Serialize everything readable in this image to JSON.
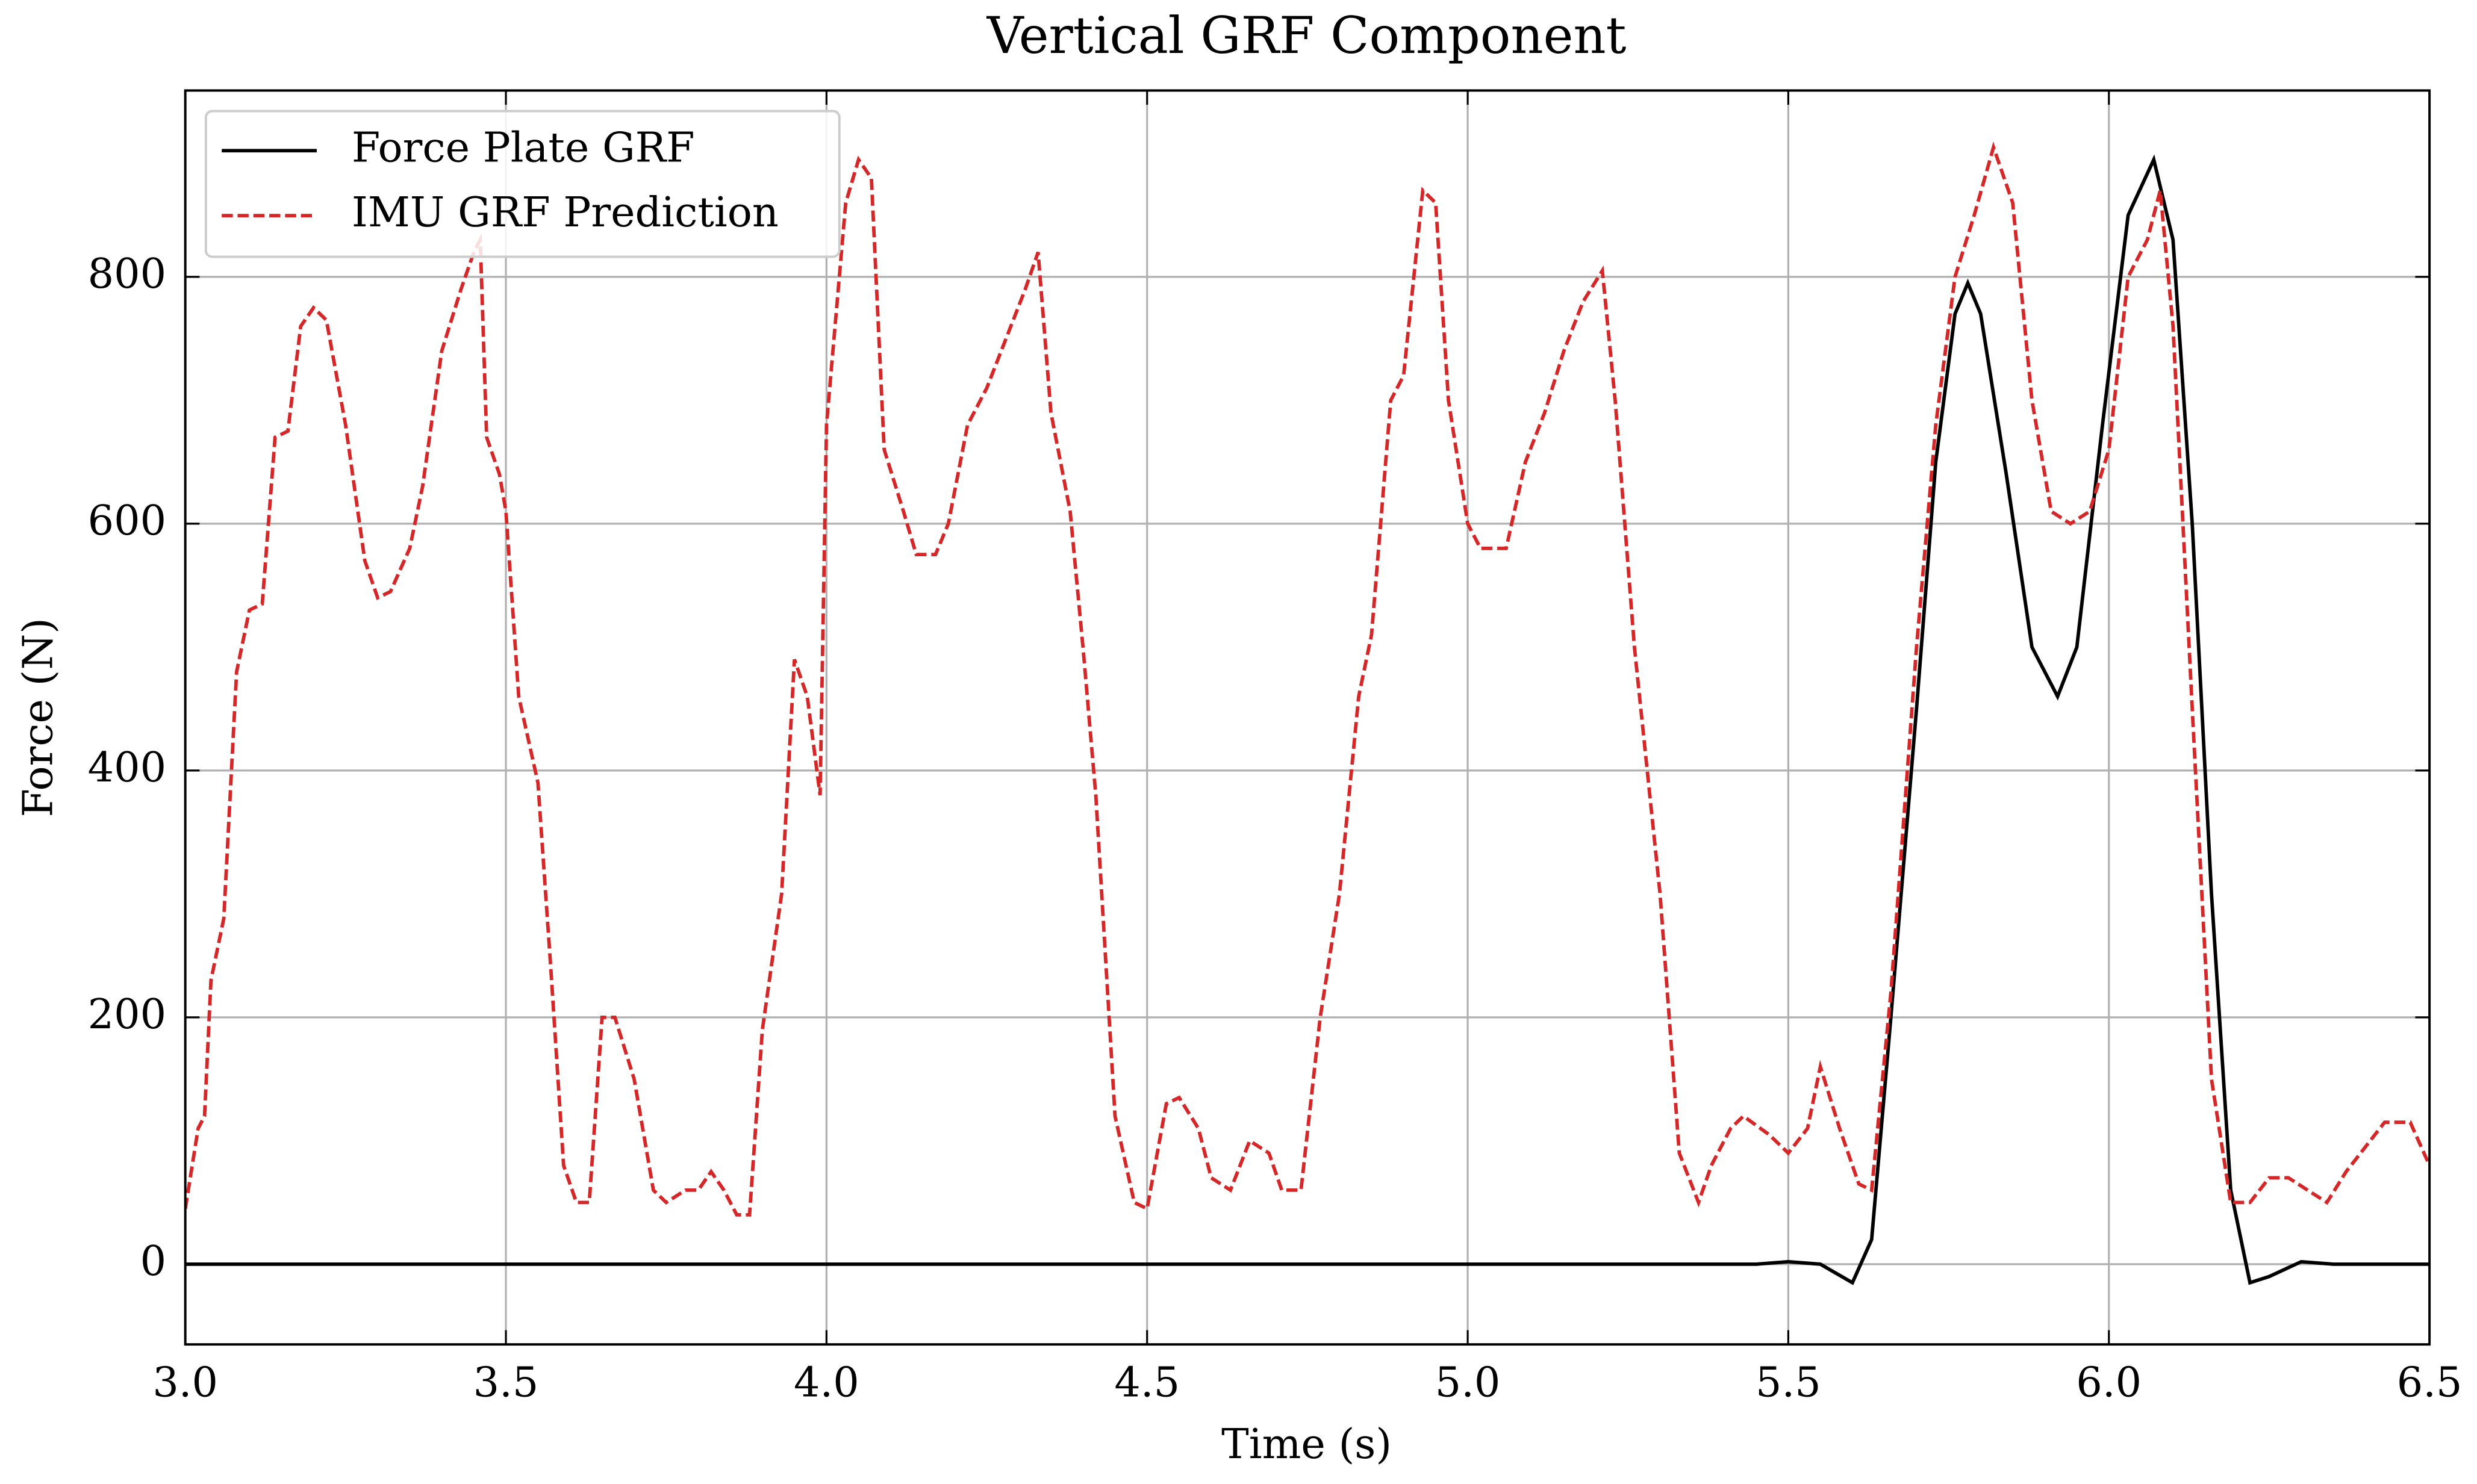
{
  "chart_data": {
    "type": "line",
    "title": "Vertical GRF Component",
    "xlabel": "Time (s)",
    "ylabel": "Force (N)",
    "xlim": [
      3,
      6.5
    ],
    "ylim": [
      -65,
      951
    ],
    "xticks": [
      {
        "value": 3,
        "label": "3.0"
      },
      3.5,
      {
        "value": 4,
        "label": "4.0"
      },
      4.5,
      {
        "value": 5,
        "label": "5.0"
      },
      5.5,
      {
        "value": 6,
        "label": "6.0"
      },
      6.5
    ],
    "yticks": [
      0,
      200,
      400,
      600,
      800
    ],
    "grid": true,
    "legend": "upper left",
    "series": [
      {
        "name": "Force Plate GRF",
        "color": "#000000",
        "linestyle": "solid",
        "x": [
          3.0,
          5.45,
          5.5,
          5.55,
          5.6,
          5.63,
          5.66,
          5.7,
          5.73,
          5.76,
          5.78,
          5.8,
          5.84,
          5.88,
          5.92,
          5.95,
          5.99,
          6.03,
          6.07,
          6.1,
          6.13,
          6.16,
          6.19,
          6.22,
          6.25,
          6.3,
          6.35,
          6.5
        ],
        "values": [
          0,
          0,
          2,
          0,
          -15,
          20,
          200,
          450,
          650,
          770,
          795,
          770,
          640,
          500,
          460,
          500,
          680,
          850,
          895,
          830,
          600,
          300,
          60,
          -15,
          -10,
          2,
          0,
          0
        ]
      },
      {
        "name": "IMU GRF Prediction",
        "color": "#d62728",
        "linestyle": "dashed",
        "x": [
          3.0,
          3.02,
          3.03,
          3.04,
          3.06,
          3.08,
          3.1,
          3.12,
          3.14,
          3.16,
          3.18,
          3.2,
          3.22,
          3.25,
          3.28,
          3.3,
          3.32,
          3.35,
          3.37,
          3.4,
          3.43,
          3.45,
          3.46,
          3.47,
          3.49,
          3.5,
          3.52,
          3.55,
          3.57,
          3.59,
          3.61,
          3.63,
          3.65,
          3.67,
          3.7,
          3.73,
          3.75,
          3.78,
          3.8,
          3.82,
          3.84,
          3.86,
          3.88,
          3.9,
          3.93,
          3.95,
          3.97,
          3.99,
          4.0,
          4.03,
          4.05,
          4.07,
          4.09,
          4.12,
          4.14,
          4.17,
          4.19,
          4.22,
          4.25,
          4.28,
          4.31,
          4.33,
          4.35,
          4.38,
          4.4,
          4.42,
          4.45,
          4.48,
          4.5,
          4.53,
          4.55,
          4.58,
          4.6,
          4.63,
          4.66,
          4.69,
          4.71,
          4.74,
          4.77,
          4.8,
          4.83,
          4.85,
          4.88,
          4.9,
          4.93,
          4.95,
          4.97,
          5.0,
          5.02,
          5.06,
          5.09,
          5.12,
          5.15,
          5.18,
          5.21,
          5.23,
          5.26,
          5.3,
          5.33,
          5.36,
          5.38,
          5.41,
          5.43,
          5.47,
          5.5,
          5.53,
          5.55,
          5.58,
          5.61,
          5.63,
          5.66,
          5.7,
          5.73,
          5.76,
          5.79,
          5.82,
          5.85,
          5.88,
          5.91,
          5.94,
          5.97,
          6.0,
          6.03,
          6.06,
          6.08,
          6.1,
          6.13,
          6.16,
          6.19,
          6.22,
          6.25,
          6.28,
          6.31,
          6.34,
          6.37,
          6.4,
          6.43,
          6.47,
          6.5
        ],
        "values": [
          45,
          110,
          120,
          230,
          280,
          480,
          530,
          535,
          670,
          675,
          760,
          775,
          765,
          680,
          570,
          540,
          545,
          580,
          630,
          740,
          790,
          820,
          830,
          670,
          640,
          610,
          460,
          390,
          240,
          80,
          50,
          50,
          200,
          200,
          150,
          60,
          50,
          60,
          60,
          75,
          60,
          40,
          40,
          190,
          300,
          490,
          460,
          380,
          680,
          860,
          895,
          880,
          660,
          610,
          575,
          575,
          600,
          680,
          710,
          750,
          790,
          820,
          690,
          610,
          500,
          380,
          120,
          50,
          45,
          130,
          135,
          110,
          70,
          60,
          100,
          90,
          60,
          60,
          200,
          300,
          460,
          510,
          700,
          720,
          870,
          860,
          700,
          600,
          580,
          580,
          650,
          690,
          740,
          780,
          805,
          700,
          500,
          300,
          90,
          50,
          80,
          110,
          120,
          105,
          90,
          110,
          160,
          110,
          65,
          60,
          220,
          500,
          680,
          800,
          850,
          905,
          860,
          700,
          610,
          600,
          610,
          660,
          800,
          830,
          870,
          760,
          450,
          150,
          50,
          50,
          70,
          70,
          60,
          50,
          75,
          95,
          115,
          115,
          80
        ]
      }
    ]
  }
}
